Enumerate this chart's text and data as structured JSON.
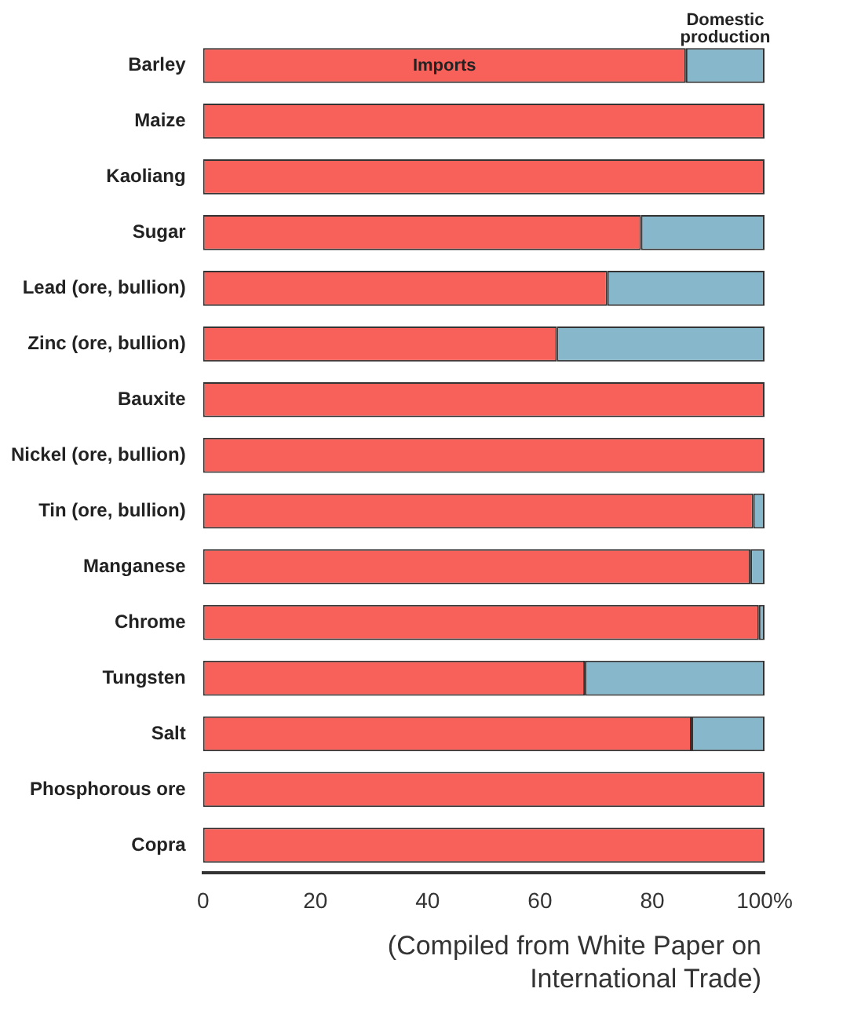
{
  "chart_data": {
    "type": "bar",
    "orientation": "horizontal",
    "stacked": true,
    "categories": [
      "Barley",
      "Maize",
      "Kaoliang",
      "Sugar",
      "Lead (ore, bullion)",
      "Zinc (ore, bullion)",
      "Bauxite",
      "Nickel (ore, bullion)",
      "Tin (ore, bullion)",
      "Manganese",
      "Chrome",
      "Tungsten",
      "Salt",
      "Phosphorous ore",
      "Copra"
    ],
    "series": [
      {
        "name": "Imports",
        "color": "#f8605a",
        "values": [
          86,
          100,
          100,
          78,
          72,
          63,
          100,
          100,
          98,
          97.5,
          99,
          68,
          87,
          100,
          100
        ]
      },
      {
        "name": "Domestic production",
        "color": "#86b7cb",
        "values": [
          14,
          0,
          0,
          22,
          28,
          37,
          0,
          0,
          2,
          2.5,
          1,
          32,
          13,
          0,
          0
        ]
      }
    ],
    "xlim": [
      0,
      100
    ],
    "xticks": [
      0,
      20,
      40,
      60,
      80,
      {
        "value": 100,
        "label": "100%"
      }
    ],
    "grid": false,
    "legend": false,
    "annotations": [
      "(Compiled from White Paper on International Trade)"
    ]
  }
}
